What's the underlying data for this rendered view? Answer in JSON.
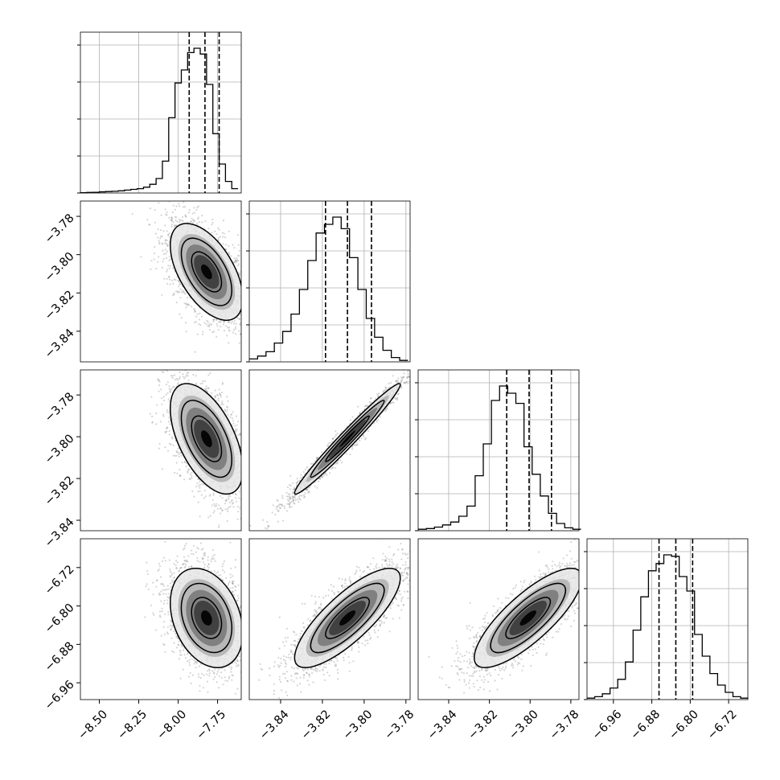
{
  "chart_data": {
    "type": "corner",
    "params": [
      {
        "xlim": [
          -8.62,
          -7.6
        ],
        "ticks": [
          -8.5,
          -8.25,
          -8.0,
          -7.75
        ],
        "tick_labels": [
          "−8.50",
          "−8.25",
          "−8.00",
          "−7.75"
        ],
        "quantiles": [
          -7.93,
          -7.83,
          -7.74
        ],
        "hist_bins": [
          -8.62,
          -8.58,
          -8.54,
          -8.5,
          -8.46,
          -8.42,
          -8.38,
          -8.34,
          -8.3,
          -8.26,
          -8.22,
          -8.18,
          -8.14,
          -8.1,
          -8.06,
          -8.02,
          -7.98,
          -7.94,
          -7.9,
          -7.86,
          -7.82,
          -7.78,
          -7.74,
          -7.7,
          -7.66,
          -7.62
        ],
        "hist_counts": [
          0.002,
          0.004,
          0.005,
          0.008,
          0.01,
          0.012,
          0.015,
          0.02,
          0.025,
          0.03,
          0.04,
          0.06,
          0.1,
          0.22,
          0.52,
          0.76,
          0.85,
          0.97,
          1.0,
          0.96,
          0.75,
          0.41,
          0.2,
          0.08,
          0.03
        ]
      },
      {
        "xlim": [
          -3.855,
          -3.778
        ],
        "ticks": [
          -3.84,
          -3.82,
          -3.8,
          -3.78
        ],
        "tick_labels": [
          "−3.84",
          "−3.82",
          "−3.80",
          "−3.78"
        ],
        "quantiles": [
          -3.8185,
          -3.808,
          -3.7965
        ],
        "hist_bins": [
          -3.855,
          -3.851,
          -3.847,
          -3.843,
          -3.839,
          -3.835,
          -3.831,
          -3.827,
          -3.823,
          -3.819,
          -3.815,
          -3.811,
          -3.807,
          -3.803,
          -3.799,
          -3.795,
          -3.791,
          -3.787,
          -3.783,
          -3.779
        ],
        "hist_counts": [
          0.02,
          0.04,
          0.07,
          0.13,
          0.21,
          0.33,
          0.5,
          0.7,
          0.89,
          0.95,
          1.0,
          0.92,
          0.72,
          0.5,
          0.3,
          0.17,
          0.08,
          0.03,
          0.01
        ]
      },
      {
        "xlim": [
          -3.855,
          -3.776
        ],
        "ticks": [
          -3.84,
          -3.82,
          -3.8,
          -3.78
        ],
        "tick_labels": [
          "−3.84",
          "−3.82",
          "−3.80",
          "−3.78"
        ],
        "quantiles": [
          -3.8115,
          -3.8005,
          -3.7895
        ],
        "hist_bins": [
          -3.855,
          -3.851,
          -3.847,
          -3.843,
          -3.839,
          -3.835,
          -3.831,
          -3.827,
          -3.823,
          -3.819,
          -3.815,
          -3.811,
          -3.807,
          -3.803,
          -3.799,
          -3.795,
          -3.791,
          -3.787,
          -3.783,
          -3.779,
          -3.775
        ],
        "hist_counts": [
          0.01,
          0.015,
          0.025,
          0.04,
          0.06,
          0.1,
          0.17,
          0.38,
          0.6,
          0.9,
          1.0,
          0.95,
          0.88,
          0.58,
          0.39,
          0.24,
          0.12,
          0.05,
          0.02,
          0.01
        ]
      },
      {
        "xlim": [
          -7.015,
          -6.68
        ],
        "ticks": [
          -6.96,
          -6.88,
          -6.8,
          -6.72
        ],
        "tick_labels": [
          "−6.96",
          "−6.88",
          "−6.80",
          "−6.72"
        ],
        "quantiles": [
          -6.865,
          -6.83,
          -6.795
        ],
        "hist_bins": [
          -7.015,
          -6.999,
          -6.983,
          -6.967,
          -6.951,
          -6.935,
          -6.919,
          -6.903,
          -6.887,
          -6.871,
          -6.855,
          -6.839,
          -6.823,
          -6.807,
          -6.791,
          -6.775,
          -6.759,
          -6.743,
          -6.727,
          -6.711,
          -6.695,
          -6.679
        ],
        "hist_counts": [
          0.01,
          0.02,
          0.04,
          0.08,
          0.14,
          0.26,
          0.48,
          0.71,
          0.89,
          0.94,
          1.0,
          0.99,
          0.85,
          0.75,
          0.45,
          0.3,
          0.18,
          0.1,
          0.05,
          0.02,
          0.01
        ]
      }
    ],
    "ylims": {
      "1": [
        -3.856,
        -3.772
      ],
      "2": [
        -3.845,
        -3.768
      ],
      "3": [
        -6.995,
        -6.66
      ]
    },
    "ytick_sets": {
      "1": {
        "ticks": [
          -3.78,
          -3.8,
          -3.82,
          -3.84
        ],
        "labels": [
          "−3.78",
          "−3.80",
          "−3.82",
          "−3.84"
        ]
      },
      "2": {
        "ticks": [
          -3.78,
          -3.8,
          -3.82,
          -3.84
        ],
        "labels": [
          "−3.78",
          "−3.80",
          "−3.82",
          "−3.84"
        ]
      },
      "3": {
        "ticks": [
          -6.72,
          -6.8,
          -6.88,
          -6.96
        ],
        "labels": [
          "−6.72",
          "−6.80",
          "−6.88",
          "−6.96"
        ]
      }
    },
    "pairs": [
      {
        "row": 1,
        "col": 0,
        "center": [
          -7.82,
          -3.809
        ],
        "sd": [
          0.1,
          0.011
        ],
        "rho": -0.55
      },
      {
        "row": 2,
        "col": 0,
        "center": [
          -7.82,
          -3.801
        ],
        "sd": [
          0.1,
          0.0115
        ],
        "rho": -0.55
      },
      {
        "row": 3,
        "col": 0,
        "center": [
          -7.82,
          -6.825
        ],
        "sd": [
          0.1,
          0.045
        ],
        "rho": -0.3
      },
      {
        "row": 2,
        "col": 1,
        "center": [
          -3.808,
          -3.801
        ],
        "sd": [
          0.011,
          0.0115
        ],
        "rho": 0.98
      },
      {
        "row": 3,
        "col": 1,
        "center": [
          -3.808,
          -6.825
        ],
        "sd": [
          0.011,
          0.045
        ],
        "rho": 0.8
      },
      {
        "row": 3,
        "col": 2,
        "center": [
          -3.801,
          -6.825
        ],
        "sd": [
          0.0115,
          0.045
        ],
        "rho": 0.8
      }
    ],
    "grid": true,
    "line_color": "#000000",
    "point_color": "#888888",
    "density_colors": [
      "#e6e6e6",
      "#b3b3b3",
      "#7a7a7a",
      "#3a3a3a",
      "#000000"
    ]
  }
}
